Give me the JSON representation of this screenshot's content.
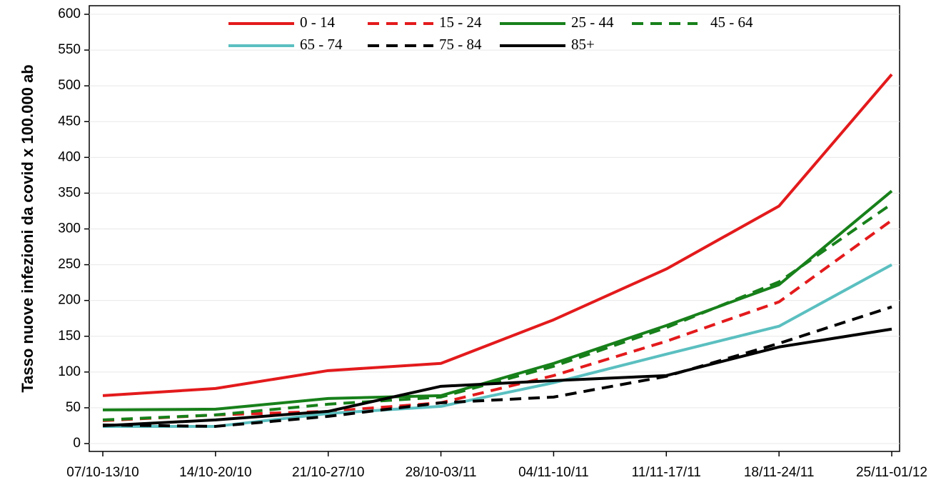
{
  "chart_data": {
    "type": "line",
    "ylabel": "Tasso nuove infezioni da covid x 100.000 ab",
    "categories": [
      "07/10-13/10",
      "14/10-20/10",
      "21/10-27/10",
      "28/10-03/11",
      "04/11-10/11",
      "11/11-17/11",
      "18/11-24/11",
      "25/11-01/12"
    ],
    "series": [
      {
        "name": "0 - 14",
        "color": "#e31a1c",
        "dashed": false,
        "values": [
          67,
          77,
          102,
          112,
          173,
          244,
          332,
          516
        ]
      },
      {
        "name": "15 - 24",
        "color": "#e31a1c",
        "dashed": true,
        "values": [
          32,
          40,
          45,
          57,
          95,
          143,
          198,
          312
        ]
      },
      {
        "name": "25 - 44",
        "color": "#17801a",
        "dashed": false,
        "values": [
          47,
          48,
          63,
          67,
          112,
          165,
          222,
          353
        ]
      },
      {
        "name": "45 - 64",
        "color": "#17801a",
        "dashed": true,
        "values": [
          33,
          40,
          55,
          65,
          108,
          162,
          226,
          335
        ]
      },
      {
        "name": "65 - 74",
        "color": "#5bbfc0",
        "dashed": false,
        "values": [
          24,
          24,
          42,
          52,
          85,
          125,
          164,
          250
        ]
      },
      {
        "name": "75 - 84",
        "color": "#000000",
        "dashed": true,
        "values": [
          26,
          24,
          38,
          57,
          65,
          94,
          140,
          191
        ]
      },
      {
        "name": "85+",
        "color": "#000000",
        "dashed": false,
        "values": [
          25,
          33,
          45,
          80,
          88,
          95,
          135,
          160
        ]
      }
    ],
    "ylim": [
      -11,
      612
    ],
    "yticks": [
      0,
      50,
      100,
      150,
      200,
      250,
      300,
      350,
      400,
      450,
      500,
      550,
      600
    ],
    "grid": true,
    "legend": "top"
  }
}
